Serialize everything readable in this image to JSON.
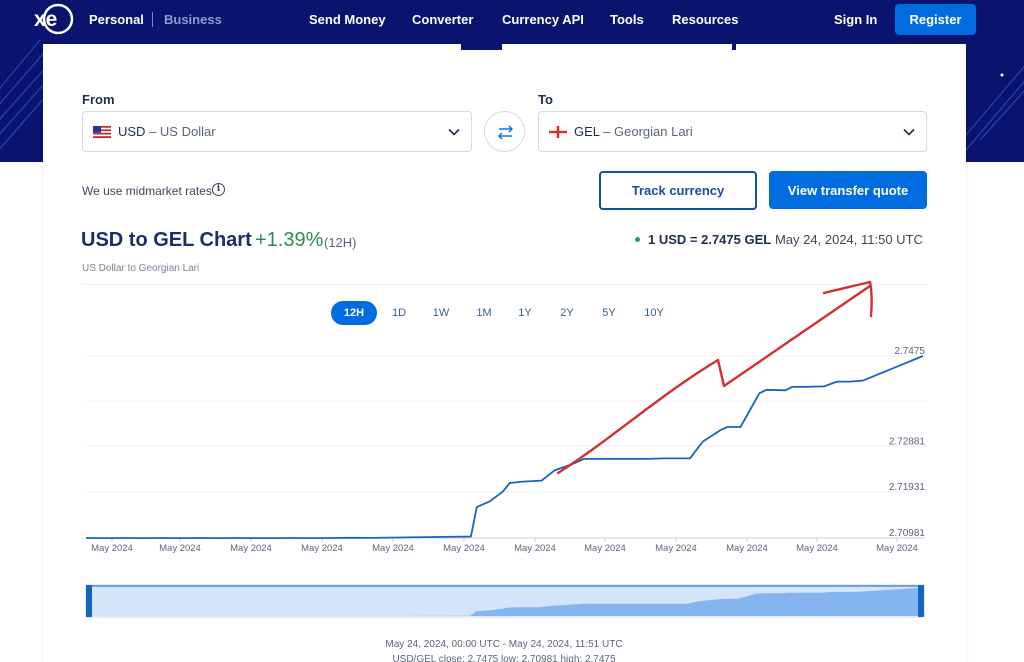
{
  "nav": {
    "personal": "Personal",
    "business": "Business",
    "links": [
      "Send Money",
      "Converter",
      "Currency API",
      "Tools",
      "Resources"
    ],
    "sign_in": "Sign In",
    "register": "Register"
  },
  "converter": {
    "from_label": "From",
    "to_label": "To",
    "from_code": "USD",
    "from_name": "– US Dollar",
    "to_code": "GEL",
    "to_name": "– Georgian Lari"
  },
  "midmarket_text": "We use midmarket rates",
  "buttons": {
    "track": "Track currency",
    "quote": "View transfer quote"
  },
  "chart_header": {
    "title": "USD to GEL Chart",
    "change": "+1.39%",
    "period": "(12H)",
    "subtitle": "US Dollar to Georgian Lari",
    "rate": "1 USD = 2.7475 GEL",
    "timestamp": "May 24, 2024, 11:50 UTC"
  },
  "periods": [
    "12H",
    "1D",
    "1W",
    "1M",
    "1Y",
    "2Y",
    "5Y",
    "10Y"
  ],
  "active_period": "12H",
  "footer": {
    "range": "May 24, 2024, 00:00 UTC - May 24, 2024, 11:51 UTC",
    "stats": "USD/GEL close: 2.7475 low: 2.70981 high: 2.7475"
  },
  "colors": {
    "nav_bg": "#0a146e",
    "accent": "#006ce0",
    "line": "#1565c0",
    "positive": "#2e8b57",
    "annotation": "#d32f2f"
  },
  "chart_data": {
    "type": "line",
    "series": [
      {
        "values": [
          2.70981,
          2.70978,
          2.70981,
          2.70979,
          2.7098,
          2.70978,
          2.70981,
          2.70979,
          2.7098,
          2.70978,
          2.70979,
          2.7098,
          2.70979,
          2.70981,
          2.70985,
          2.70984,
          2.71012,
          2.7162,
          2.7174,
          2.7194,
          2.7212,
          2.7215,
          2.7217,
          2.7238,
          2.7252,
          2.7262,
          2.7262,
          2.7262,
          2.7263,
          2.7263,
          2.7298,
          2.7323,
          2.7328,
          2.7328,
          2.7398,
          2.7405,
          2.7404,
          2.7411,
          2.7411,
          2.7412,
          2.7422,
          2.7422,
          2.7424,
          2.7451,
          2.7475
        ]
      }
    ],
    "x": [
      "00:00",
      "00:16",
      "00:32",
      "00:48",
      "01:04",
      "01:20",
      "01:36",
      "01:52",
      "02:08",
      "02:24",
      "02:40",
      "02:56",
      "03:12",
      "03:28",
      "03:44",
      "04:00",
      "05:27",
      "05:32",
      "05:43",
      "05:54",
      "06:00",
      "06:11",
      "06:27",
      "06:38",
      "06:54",
      "07:03",
      "07:30",
      "07:57",
      "08:11",
      "08:33",
      "08:44",
      "09:00",
      "09:05",
      "09:16",
      "09:32",
      "09:38",
      "09:54",
      "10:00",
      "10:11",
      "10:27",
      "10:38",
      "10:49",
      "11:00",
      "11:27",
      "11:51"
    ],
    "x_tick_labels": [
      "May 2024",
      "May 2024",
      "May 2024",
      "May 2024",
      "May 2024",
      "May 2024",
      "May 2024",
      "May 2024",
      "May 2024",
      "May 2024",
      "May 2024",
      "May 2024"
    ],
    "y_ticks": [
      2.70981,
      2.71931,
      2.72881,
      2.7475
    ],
    "ylim": [
      2.70981,
      2.7475
    ],
    "grid": true,
    "legend": "none",
    "annotation": "red hand-drawn arrow pointing up-right"
  }
}
